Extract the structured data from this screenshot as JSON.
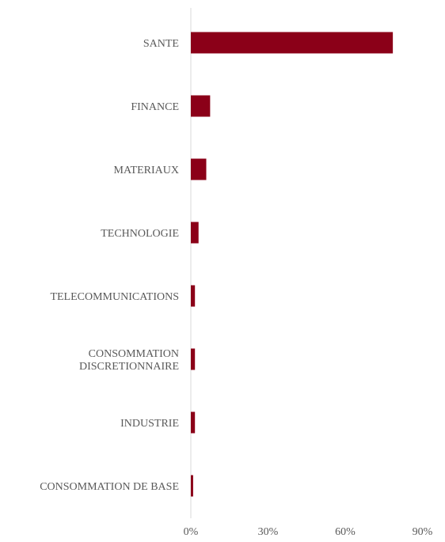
{
  "chart_data": {
    "type": "bar",
    "orientation": "horizontal",
    "categories": [
      [
        "SANTE"
      ],
      [
        "FINANCE"
      ],
      [
        "MATERIAUX"
      ],
      [
        "TECHNOLOGIE"
      ],
      [
        "TELECOMMUNICATIONS"
      ],
      [
        "CONSOMMATION",
        "DISCRETIONNAIRE"
      ],
      [
        "INDUSTRIE"
      ],
      [
        "CONSOMMATION DE BASE"
      ]
    ],
    "values": [
      78.5,
      7.5,
      6.0,
      3.0,
      1.6,
      1.6,
      1.6,
      0.9
    ],
    "xlim": [
      0,
      90
    ],
    "xticks": [
      0,
      30,
      60,
      90
    ],
    "tick_labels": [
      "0%",
      "30%",
      "60%",
      "90%"
    ],
    "xlabel": "",
    "ylabel": "",
    "title": "",
    "grid": false,
    "legend": "none",
    "bar_color": "#8b0018",
    "axis_color": "#d9d9d9"
  }
}
